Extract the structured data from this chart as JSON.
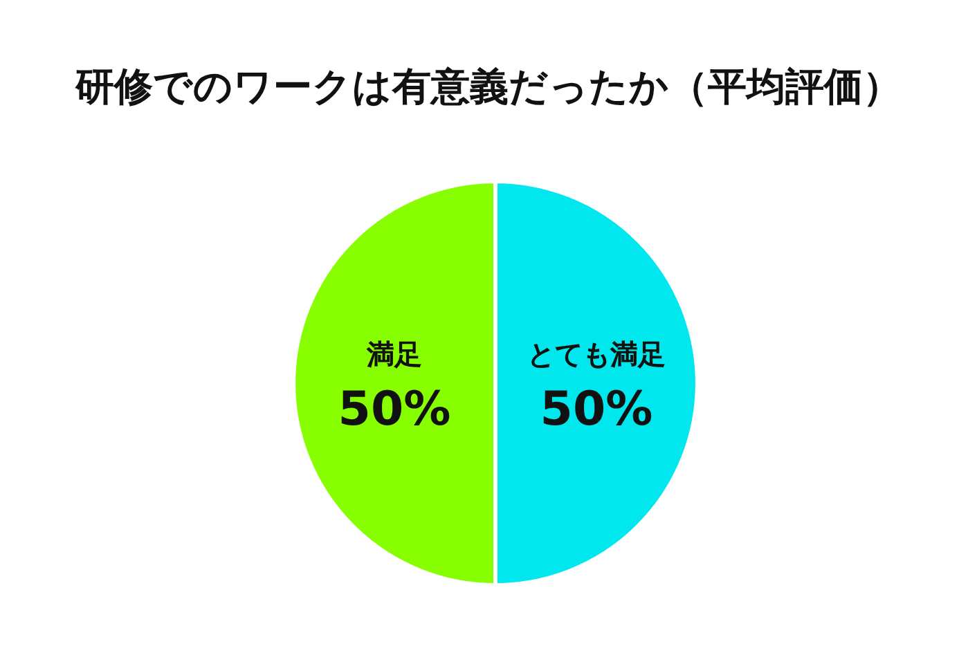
{
  "chart_data": {
    "type": "pie",
    "title": "研修でのワークは有意義だったか（平均評価）",
    "categories": [
      "とても満足",
      "満足"
    ],
    "values": [
      50,
      50
    ],
    "colors": [
      "#00e8ee",
      "#88ff00"
    ],
    "value_labels": [
      "50%",
      "50%"
    ]
  }
}
